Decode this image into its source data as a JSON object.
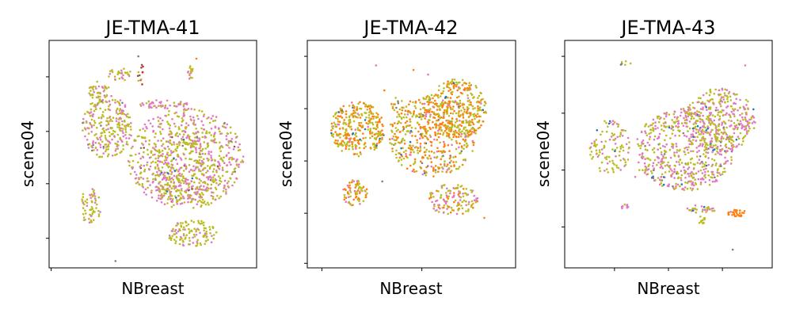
{
  "figure": {
    "background": "#ffffff",
    "palette": {
      "olive": "#bcbd22",
      "pink": "#e377c2",
      "orange": "#ff7f0e",
      "gray": "#7f7f7f",
      "brown": "#8c564b",
      "blue": "#1f77b4",
      "red": "#d62728",
      "green": "#2ca02c"
    }
  },
  "chart_data": [
    {
      "type": "scatter",
      "title": "JE-TMA-41",
      "xlabel": "NBreast",
      "ylabel": "scene04",
      "grid": false,
      "legend": "none",
      "xlim": [
        0,
        100
      ],
      "ylim": [
        0,
        100
      ],
      "xticks": [
        1
      ],
      "yticks": [
        13,
        37,
        60,
        84
      ],
      "clusters": [
        {
          "cx": 28,
          "cy": 62,
          "rx": 12,
          "ry": 14,
          "n": 260,
          "mix": {
            "olive": 0.55,
            "pink": 0.4,
            "gray": 0.05
          }
        },
        {
          "cx": 66,
          "cy": 48,
          "rx": 28,
          "ry": 22,
          "n": 700,
          "mix": {
            "olive": 0.55,
            "pink": 0.4,
            "gray": 0.03,
            "brown": 0.02
          }
        },
        {
          "cx": 65,
          "cy": 44,
          "rx": 16,
          "ry": 16,
          "n": 250,
          "mix": {
            "olive": 0.65,
            "pink": 0.33,
            "blue": 0.02
          }
        },
        {
          "cx": 20,
          "cy": 27,
          "rx": 5,
          "ry": 8,
          "n": 60,
          "mix": {
            "olive": 0.75,
            "pink": 0.25
          }
        },
        {
          "cx": 69,
          "cy": 15,
          "rx": 12,
          "ry": 6,
          "n": 120,
          "mix": {
            "olive": 0.8,
            "pink": 0.2
          }
        },
        {
          "cx": 24,
          "cy": 78,
          "rx": 5,
          "ry": 4,
          "n": 40,
          "mix": {
            "olive": 0.7,
            "pink": 0.3
          }
        },
        {
          "cx": 34,
          "cy": 85,
          "rx": 6,
          "ry": 3,
          "n": 30,
          "mix": {
            "olive": 0.75,
            "pink": 0.25
          }
        },
        {
          "cx": 55,
          "cy": 72,
          "rx": 12,
          "ry": 2,
          "n": 50,
          "mix": {
            "pink": 0.8,
            "olive": 0.2
          }
        },
        {
          "cx": 68,
          "cy": 86,
          "rx": 2,
          "ry": 3,
          "n": 15,
          "mix": {
            "olive": 0.8,
            "pink": 0.2
          }
        },
        {
          "cx": 44,
          "cy": 85,
          "rx": 2,
          "ry": 5,
          "n": 12,
          "mix": {
            "olive": 0.5,
            "red": 0.3,
            "brown": 0.2
          }
        }
      ],
      "outliers": [
        [
          32,
          3,
          "gray"
        ],
        [
          71,
          92,
          "orange"
        ],
        [
          43,
          93,
          "gray"
        ]
      ]
    },
    {
      "type": "scatter",
      "title": "JE-TMA-42",
      "xlabel": "NBreast",
      "ylabel": "scene04",
      "grid": false,
      "legend": "none",
      "xlim": [
        0,
        100
      ],
      "ylim": [
        0,
        100
      ],
      "xticks": [
        7,
        55
      ],
      "yticks": [
        2,
        24,
        47,
        70,
        93
      ],
      "clusters": [
        {
          "cx": 24,
          "cy": 61,
          "rx": 13,
          "ry": 12,
          "n": 320,
          "mix": {
            "olive": 0.5,
            "orange": 0.42,
            "pink": 0.05,
            "blue": 0.03
          }
        },
        {
          "cx": 60,
          "cy": 58,
          "rx": 21,
          "ry": 18,
          "n": 520,
          "mix": {
            "olive": 0.5,
            "orange": 0.4,
            "pink": 0.06,
            "blue": 0.02,
            "gray": 0.02
          }
        },
        {
          "cx": 72,
          "cy": 70,
          "rx": 14,
          "ry": 13,
          "n": 300,
          "mix": {
            "olive": 0.5,
            "orange": 0.42,
            "pink": 0.06,
            "blue": 0.02
          }
        },
        {
          "cx": 23,
          "cy": 33,
          "rx": 6,
          "ry": 6,
          "n": 70,
          "mix": {
            "olive": 0.5,
            "orange": 0.3,
            "pink": 0.2
          }
        },
        {
          "cx": 70,
          "cy": 30,
          "rx": 12,
          "ry": 7,
          "n": 130,
          "mix": {
            "olive": 0.5,
            "pink": 0.35,
            "orange": 0.15
          }
        },
        {
          "cx": 43,
          "cy": 72,
          "rx": 3,
          "ry": 3,
          "n": 12,
          "mix": {
            "olive": 0.5,
            "orange": 0.3,
            "gray": 0.2
          }
        }
      ],
      "outliers": [
        [
          37,
          78,
          "orange"
        ],
        [
          51,
          87,
          "orange"
        ],
        [
          58,
          85,
          "pink"
        ],
        [
          85,
          22,
          "orange"
        ],
        [
          36,
          38,
          "gray"
        ],
        [
          33,
          89,
          "pink"
        ]
      ]
    },
    {
      "type": "scatter",
      "title": "JE-TMA-43",
      "xlabel": "NBreast",
      "ylabel": "scene04",
      "grid": false,
      "legend": "none",
      "xlim": [
        0,
        100
      ],
      "ylim": [
        0,
        100
      ],
      "xticks": [
        24,
        50,
        76
      ],
      "yticks": [
        18,
        43,
        68,
        93
      ],
      "clusters": [
        {
          "cx": 22,
          "cy": 53,
          "rx": 10,
          "ry": 12,
          "n": 110,
          "mix": {
            "olive": 0.6,
            "pink": 0.35,
            "blue": 0.05
          }
        },
        {
          "cx": 58,
          "cy": 52,
          "rx": 24,
          "ry": 18,
          "n": 560,
          "mix": {
            "olive": 0.55,
            "pink": 0.4,
            "gray": 0.03,
            "blue": 0.02
          }
        },
        {
          "cx": 75,
          "cy": 65,
          "rx": 17,
          "ry": 14,
          "n": 360,
          "mix": {
            "olive": 0.55,
            "pink": 0.4,
            "blue": 0.03,
            "gray": 0.02
          }
        },
        {
          "cx": 66,
          "cy": 26,
          "rx": 7,
          "ry": 2,
          "n": 30,
          "mix": {
            "olive": 0.6,
            "pink": 0.3,
            "blue": 0.1
          }
        },
        {
          "cx": 66,
          "cy": 21,
          "rx": 2,
          "ry": 2,
          "n": 12,
          "mix": {
            "olive": 1.0
          }
        },
        {
          "cx": 83,
          "cy": 24,
          "rx": 5,
          "ry": 1.5,
          "n": 30,
          "mix": {
            "orange": 0.9,
            "pink": 0.1
          }
        },
        {
          "cx": 29,
          "cy": 90,
          "rx": 3,
          "ry": 1,
          "n": 6,
          "mix": {
            "olive": 0.7,
            "gray": 0.3
          }
        },
        {
          "cx": 29,
          "cy": 27,
          "rx": 2,
          "ry": 1.5,
          "n": 8,
          "mix": {
            "pink": 0.6,
            "olive": 0.4
          }
        }
      ],
      "outliers": [
        [
          81,
          8,
          "gray"
        ],
        [
          87,
          89,
          "pink"
        ],
        [
          34,
          40,
          "pink"
        ],
        [
          36,
          43,
          "olive"
        ]
      ]
    }
  ]
}
